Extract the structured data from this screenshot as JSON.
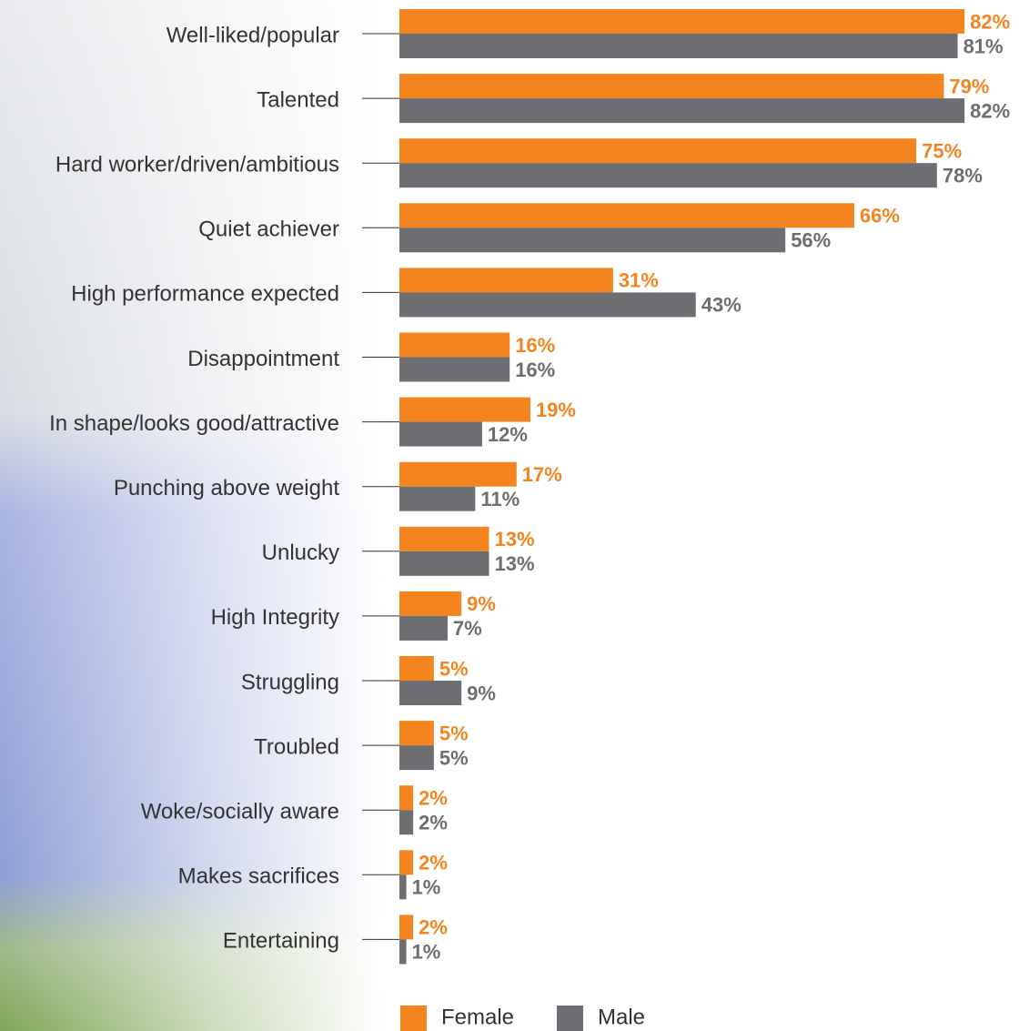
{
  "chart_data": {
    "type": "hbar",
    "categories": [
      "Well-liked/popular",
      "Talented",
      "Hard worker/driven/ambitious",
      "Quiet achiever",
      "High performance expected",
      "Disappointment",
      "In shape/looks good/attractive",
      "Punching above weight",
      "Unlucky",
      "High Integrity",
      "Struggling",
      "Troubled",
      "Woke/socially aware",
      "Makes sacrifices",
      "Entertaining"
    ],
    "series": [
      {
        "name": "Female",
        "color": "#f4841f",
        "values": [
          82,
          79,
          75,
          66,
          31,
          16,
          19,
          17,
          13,
          9,
          5,
          5,
          2,
          2,
          2
        ],
        "value_labels": [
          "82%",
          "79%",
          "75%",
          "66%",
          "31%",
          "16%",
          "19%",
          "17%",
          "13%",
          "9%",
          "5%",
          "5%",
          "2%",
          "2%",
          "2%"
        ]
      },
      {
        "name": "Male",
        "color": "#6d6e71",
        "values": [
          81,
          82,
          78,
          56,
          43,
          16,
          12,
          11,
          13,
          7,
          9,
          5,
          2,
          1,
          1
        ],
        "value_labels": [
          "81%",
          "82%",
          "78%",
          "56%",
          "43%",
          "16%",
          "12%",
          "11%",
          "13%",
          "7%",
          "9%",
          "5%",
          "2%",
          "1%",
          "1%"
        ]
      }
    ],
    "legend": "bottom"
  }
}
